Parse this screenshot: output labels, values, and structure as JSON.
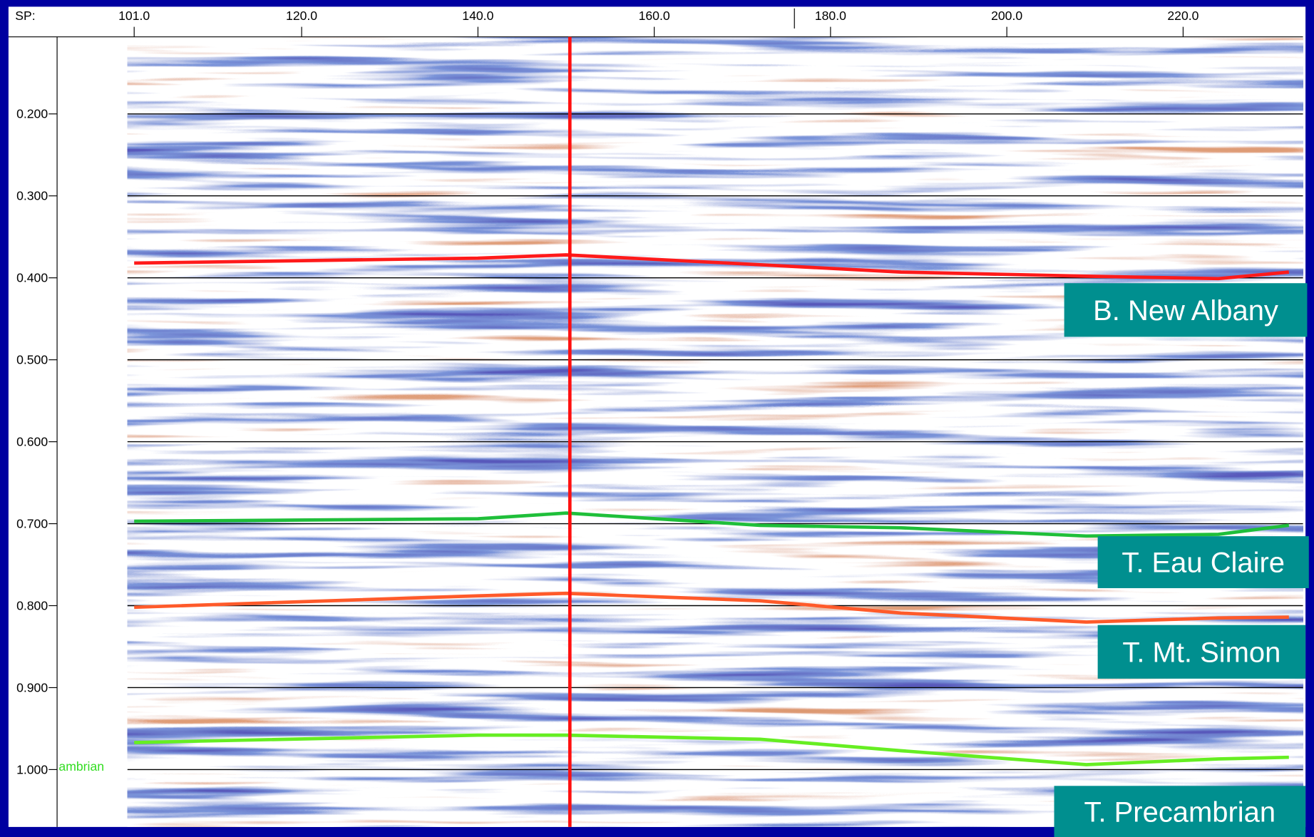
{
  "chart_data": {
    "type": "seismic",
    "x_label": "SP:",
    "left_label": "ambrian",
    "xlim": [
      100.24,
      233.6
    ],
    "xticks": [
      {
        "value": 101,
        "label": "101.0"
      },
      {
        "value": 120,
        "label": "120.0"
      },
      {
        "value": 140,
        "label": "140.0"
      },
      {
        "value": 160,
        "label": "160.0"
      },
      {
        "value": 180,
        "label": "180.0"
      },
      {
        "value": 200,
        "label": "200.0"
      },
      {
        "value": 220,
        "label": "220.0"
      }
    ],
    "ylim": [
      0.106,
      1.07
    ],
    "yticks": [
      {
        "value": 0.2,
        "label": "0.200"
      },
      {
        "value": 0.3,
        "label": "0.300"
      },
      {
        "value": 0.4,
        "label": "0.400"
      },
      {
        "value": 0.5,
        "label": "0.500"
      },
      {
        "value": 0.6,
        "label": "0.600"
      },
      {
        "value": 0.7,
        "label": "0.700"
      },
      {
        "value": 0.8,
        "label": "0.800"
      },
      {
        "value": 0.9,
        "label": "0.900"
      },
      {
        "value": 1,
        "label": "1.000"
      }
    ],
    "x": [
      101,
      140,
      150,
      172,
      188,
      209,
      224,
      232
    ],
    "series": [
      {
        "name": "B. New Albany",
        "color": "#ff1a1a",
        "values": [
          0.382,
          0.376,
          0.372,
          0.384,
          0.393,
          0.398,
          0.401,
          0.393
        ]
      },
      {
        "name": "T. Eau Claire",
        "color": "#1fbf3a",
        "values": [
          0.697,
          0.694,
          0.687,
          0.702,
          0.705,
          0.715,
          0.713,
          0.702
        ]
      },
      {
        "name": "T. Mt. Simon",
        "color": "#ff5a2a",
        "values": [
          0.802,
          0.788,
          0.785,
          0.794,
          0.809,
          0.82,
          0.815,
          0.814
        ]
      },
      {
        "name": "T. Precambrian",
        "color": "#66ee22",
        "values": [
          0.967,
          0.958,
          0.958,
          0.963,
          0.977,
          0.994,
          0.987,
          0.985
        ]
      }
    ]
  }
}
